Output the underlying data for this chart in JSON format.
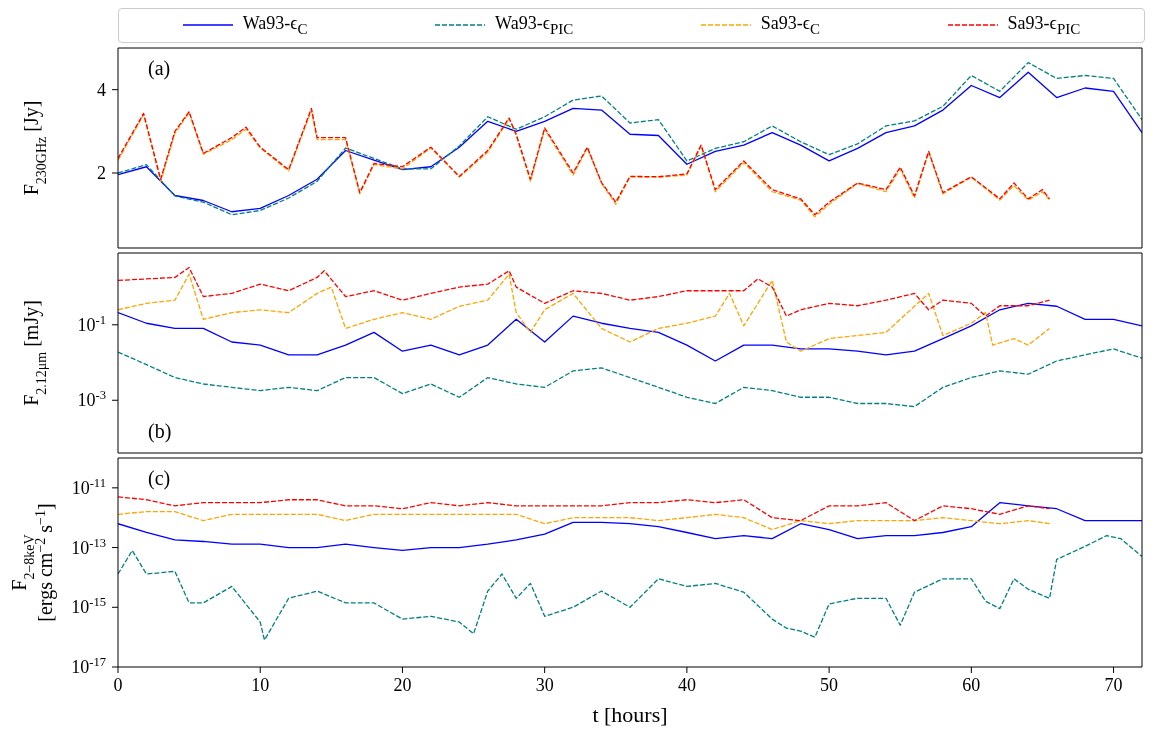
{
  "chart_data": [
    {
      "type": "line",
      "ylabel": "F$_{230GHz}$ [Jy]",
      "annotations": [
        "(a)"
      ],
      "legend": "top",
      "tick_labels": "y",
      "xlim": [
        0,
        72
      ],
      "xticks": [
        0,
        10,
        20,
        30,
        40,
        50,
        60,
        70
      ],
      "ylim": [
        0.2,
        5
      ],
      "yticks": [
        2,
        4
      ],
      "x": [
        0,
        2,
        4,
        6,
        8,
        10,
        12,
        14,
        16,
        18,
        20,
        22,
        24,
        26,
        28,
        30,
        32,
        34,
        36,
        38,
        40,
        42,
        44,
        46,
        48,
        50,
        52,
        54,
        56,
        58,
        60,
        62,
        64,
        66,
        68,
        70,
        72
      ],
      "series": [
        {
          "name": "Wa93-ϵ$_{C}$",
          "color": "#0000ff",
          "line_style": "solid",
          "values": [
            1.96,
            2.15,
            1.46,
            1.34,
            1.07,
            1.15,
            1.46,
            1.85,
            2.54,
            2.31,
            2.08,
            2.15,
            2.62,
            3.24,
            3.0,
            3.24,
            3.55,
            3.51,
            2.93,
            2.9,
            2.21,
            2.52,
            2.67,
            2.97,
            2.67,
            2.29,
            2.59,
            2.97,
            3.13,
            3.51,
            4.1,
            3.81,
            4.42,
            3.81,
            4.04,
            3.96,
            2.97
          ]
        },
        {
          "name": "Wa93-ϵ$_{PIC}$",
          "color": "#008080",
          "line_style": "dashed",
          "values": [
            2.0,
            2.2,
            1.45,
            1.3,
            1.0,
            1.1,
            1.4,
            1.8,
            2.6,
            2.35,
            2.1,
            2.1,
            2.65,
            3.35,
            3.05,
            3.35,
            3.75,
            3.85,
            3.2,
            3.28,
            2.29,
            2.59,
            2.75,
            3.13,
            2.75,
            2.44,
            2.7,
            3.13,
            3.25,
            3.6,
            4.34,
            3.96,
            4.65,
            4.27,
            4.34,
            4.27,
            3.28
          ]
        },
        {
          "name": "Sa93-ϵ$_{C}$",
          "color": "#ffa500",
          "line_style": "dashed",
          "x": [
            0,
            1.8,
            3,
            4,
            5,
            6,
            8,
            9,
            10,
            12,
            13.6,
            14,
            16,
            17,
            18,
            20,
            22,
            24,
            26,
            27.5,
            28,
            29,
            30,
            32,
            33,
            34,
            35,
            36,
            38,
            40,
            41,
            42,
            44,
            46,
            48,
            49,
            50,
            52,
            54,
            55,
            56,
            57,
            58,
            60,
            62,
            63,
            64,
            65,
            65.5
          ],
          "values": [
            2.3,
            3.4,
            1.8,
            2.95,
            3.45,
            2.45,
            2.8,
            3.05,
            2.6,
            2.05,
            3.5,
            2.8,
            2.8,
            1.5,
            2.2,
            2.1,
            2.6,
            1.9,
            2.5,
            3.3,
            2.9,
            1.8,
            3.05,
            1.95,
            2.6,
            1.75,
            1.25,
            1.9,
            1.9,
            1.95,
            2.65,
            1.55,
            2.25,
            1.55,
            1.35,
            0.95,
            1.25,
            1.75,
            1.55,
            2.1,
            1.4,
            2.5,
            1.5,
            1.9,
            1.35,
            1.7,
            1.35,
            1.55,
            1.35
          ]
        },
        {
          "name": "Sa93-ϵ$_{PIC}$",
          "color": "#ff0000",
          "line_style": "dashed",
          "x": [
            0,
            1.8,
            3,
            4,
            5,
            6,
            8,
            9,
            10,
            12,
            13.6,
            14,
            16,
            17,
            18,
            20,
            22,
            24,
            26,
            27.5,
            28,
            29,
            30,
            32,
            33,
            34,
            35,
            36,
            38,
            40,
            41,
            42,
            44,
            46,
            48,
            49,
            50,
            52,
            54,
            55,
            56,
            57,
            58,
            60,
            62,
            63,
            64,
            65,
            65.5
          ],
          "values": [
            2.35,
            3.43,
            1.85,
            3.0,
            3.47,
            2.47,
            2.85,
            3.1,
            2.62,
            2.08,
            3.55,
            2.85,
            2.85,
            1.53,
            2.23,
            2.15,
            2.62,
            1.92,
            2.54,
            3.32,
            2.93,
            1.85,
            3.08,
            2.0,
            2.62,
            1.77,
            1.3,
            1.92,
            1.91,
            1.98,
            2.67,
            1.6,
            2.29,
            1.6,
            1.38,
            1.0,
            1.3,
            1.76,
            1.6,
            2.14,
            1.45,
            2.52,
            1.53,
            1.91,
            1.38,
            1.76,
            1.38,
            1.6,
            1.38
          ]
        }
      ]
    },
    {
      "type": "line",
      "ylabel": "F$_{2.12μm}$ [mJy]",
      "annotations": [
        "(b)"
      ],
      "tick_labels": "y",
      "log": "y",
      "xlim": [
        0,
        72
      ],
      "xticks": [
        0,
        10,
        20,
        30,
        40,
        50,
        60,
        70
      ],
      "ylim": [
        4e-05,
        8
      ],
      "yticks": [
        {
          "value": 0.001,
          "label": "10$^{-3}$"
        },
        {
          "value": 0.1,
          "label": "10$^{-1}$"
        }
      ],
      "x": [
        0,
        2,
        4,
        6,
        8,
        10,
        12,
        14,
        16,
        18,
        20,
        22,
        24,
        26,
        28,
        30,
        32,
        34,
        36,
        38,
        40,
        42,
        44,
        46,
        48,
        50,
        52,
        54,
        56,
        58,
        60,
        62,
        64,
        66,
        68,
        70,
        72
      ],
      "series": [
        {
          "color": "#0000ff",
          "line_style": "solid",
          "values": [
            0.21,
            0.11,
            0.08,
            0.08,
            0.035,
            0.029,
            0.016,
            0.016,
            0.029,
            0.063,
            0.02,
            0.029,
            0.016,
            0.029,
            0.14,
            0.035,
            0.17,
            0.11,
            0.08,
            0.063,
            0.029,
            0.011,
            0.029,
            0.029,
            0.023,
            0.023,
            0.02,
            0.016,
            0.02,
            0.043,
            0.094,
            0.25,
            0.37,
            0.31,
            0.14,
            0.14,
            0.094
          ]
        },
        {
          "color": "#008080",
          "line_style": "dashed",
          "values": [
            0.019,
            0.0088,
            0.004,
            0.0027,
            0.0022,
            0.0018,
            0.0022,
            0.0018,
            0.004,
            0.004,
            0.0015,
            0.0027,
            0.0012,
            0.004,
            0.0027,
            0.0022,
            0.006,
            0.0072,
            0.004,
            0.0022,
            0.0012,
            0.00082,
            0.0022,
            0.0018,
            0.0012,
            0.0012,
            0.00082,
            0.00082,
            0.00068,
            0.0022,
            0.004,
            0.006,
            0.0049,
            0.011,
            0.016,
            0.023,
            0.013
          ]
        },
        {
          "color": "#ffa500",
          "line_style": "dashed",
          "x": [
            0,
            2,
            4,
            5,
            6,
            8,
            10,
            12,
            14,
            15,
            16,
            18,
            20,
            22,
            24,
            26,
            27.5,
            28,
            29,
            30,
            32,
            34,
            36,
            38,
            40,
            42,
            43,
            44,
            46,
            47,
            48,
            50,
            52,
            54,
            56,
            57,
            58,
            60,
            61,
            61.5,
            63,
            64,
            65.5
          ],
          "values": [
            0.25,
            0.37,
            0.45,
            2.2,
            0.14,
            0.21,
            0.25,
            0.21,
            0.68,
            1.0,
            0.08,
            0.14,
            0.21,
            0.14,
            0.31,
            0.45,
            2.2,
            0.21,
            0.063,
            0.25,
            0.68,
            0.08,
            0.035,
            0.08,
            0.11,
            0.17,
            0.68,
            0.094,
            1.5,
            0.035,
            0.02,
            0.043,
            0.052,
            0.063,
            0.31,
            0.68,
            0.052,
            0.11,
            0.21,
            0.029,
            0.043,
            0.029,
            0.08
          ]
        },
        {
          "color": "#ff0000",
          "line_style": "dashed",
          "x": [
            0,
            4,
            5,
            6,
            8,
            10,
            12,
            14,
            14.5,
            16,
            18,
            20,
            22,
            24,
            26,
            27.5,
            28,
            30,
            32,
            34,
            36,
            38,
            40,
            42,
            44,
            45,
            46,
            47,
            48,
            50,
            52,
            54,
            56,
            57,
            58,
            60,
            61,
            62,
            64,
            65.5
          ],
          "values": [
            1.5,
            1.8,
            3.3,
            0.56,
            0.68,
            1.2,
            0.8,
            1.8,
            2.7,
            0.56,
            0.8,
            0.45,
            0.68,
            1.0,
            1.2,
            2.7,
            1.0,
            0.37,
            0.8,
            0.68,
            0.45,
            0.56,
            0.8,
            0.8,
            0.8,
            1.65,
            1.0,
            0.17,
            0.25,
            0.37,
            0.32,
            0.45,
            0.68,
            0.25,
            0.45,
            0.37,
            0.17,
            0.32,
            0.32,
            0.45
          ]
        }
      ]
    },
    {
      "type": "line",
      "xlabel": "t [hours]",
      "ylabel": "F$_{2−8keV}$\n[ergs cm$^{−2}$ s$^{−1}$]",
      "annotations": [
        "(c)"
      ],
      "log": "y",
      "xlim": [
        0,
        72
      ],
      "xticks": [
        0,
        10,
        20,
        30,
        40,
        50,
        60,
        70
      ],
      "ylim": [
        1e-17,
        1e-10
      ],
      "yticks": [
        {
          "value": 1e-17,
          "label": "10$^{-17}$"
        },
        {
          "value": 1e-15,
          "label": "10$^{-15}$"
        },
        {
          "value": 1e-13,
          "label": "10$^{-13}$"
        },
        {
          "value": 1e-11,
          "label": "10$^{-11}$"
        }
      ],
      "x": [
        0,
        2,
        4,
        6,
        8,
        10,
        12,
        14,
        16,
        18,
        20,
        22,
        24,
        26,
        28,
        30,
        32,
        34,
        36,
        38,
        40,
        42,
        44,
        46,
        48,
        50,
        52,
        54,
        56,
        58,
        60,
        62,
        64,
        66,
        68,
        70,
        72
      ],
      "series": [
        {
          "color": "#0000ff",
          "line_style": "solid",
          "values": [
            6.3e-13,
            3.2e-13,
            1.8e-13,
            1.6e-13,
            1.3e-13,
            1.3e-13,
            1e-13,
            1e-13,
            1.3e-13,
            1e-13,
            8e-14,
            1e-13,
            1e-13,
            1.3e-13,
            1.8e-13,
            2.8e-13,
            7e-13,
            7e-13,
            6.3e-13,
            5e-13,
            3.2e-13,
            2e-13,
            2.5e-13,
            2e-13,
            6.3e-13,
            4e-13,
            2e-13,
            2.5e-13,
            2.5e-13,
            3.2e-13,
            5e-13,
            3.2e-12,
            2.5e-12,
            2e-12,
            8e-13,
            8e-13,
            8e-13
          ]
        },
        {
          "color": "#008080",
          "line_style": "dashed",
          "x": [
            0,
            1,
            2,
            4,
            5,
            6,
            8,
            10,
            10.3,
            12,
            14,
            16,
            18,
            20,
            22,
            24,
            25,
            26,
            27,
            28,
            29,
            30,
            32,
            34,
            36,
            38,
            40,
            42,
            44,
            46,
            47,
            48,
            49,
            50,
            52,
            54,
            55,
            56,
            58,
            60,
            61,
            62,
            63,
            64,
            65.5,
            66,
            68,
            69.5,
            70.5,
            72
          ],
          "values": [
            1.3e-14,
            8e-14,
            1.3e-14,
            1.6e-14,
            1.4e-15,
            1.4e-15,
            5e-15,
            3.2e-16,
            8e-17,
            2e-15,
            3.5e-15,
            1.4e-15,
            1.4e-15,
            4e-16,
            5e-16,
            3.2e-16,
            1.3e-16,
            3.5e-15,
            1.3e-14,
            2e-15,
            6.3e-15,
            5e-16,
            1e-15,
            3.5e-15,
            1e-15,
            9e-15,
            5e-15,
            6.3e-15,
            3.2e-15,
            4e-16,
            2e-16,
            1.6e-16,
            1e-16,
            1.3e-15,
            2e-15,
            2e-15,
            2.5e-16,
            3.2e-15,
            9e-15,
            9e-15,
            1.6e-15,
            9e-16,
            9e-15,
            4e-15,
            2e-15,
            4e-14,
            1.1e-13,
            2.5e-13,
            2e-13,
            5e-14
          ]
        },
        {
          "color": "#ffa500",
          "line_style": "dashed",
          "x": [
            0,
            2,
            4,
            6,
            8,
            10,
            12,
            14,
            16,
            18,
            20,
            22,
            24,
            26,
            28,
            30,
            32,
            34,
            36,
            38,
            40,
            42,
            44,
            46,
            48,
            50,
            52,
            54,
            56,
            58,
            60,
            62,
            64,
            65.5
          ],
          "values": [
            1.3e-12,
            1.6e-12,
            1.6e-12,
            8e-13,
            1.3e-12,
            1.3e-12,
            1.3e-12,
            1.3e-12,
            8e-13,
            1.3e-12,
            1.3e-12,
            1.3e-12,
            1.3e-12,
            1.3e-12,
            1.3e-12,
            6.3e-13,
            1e-12,
            1e-12,
            1e-12,
            8e-13,
            1e-12,
            1.3e-12,
            1e-12,
            4e-13,
            8e-13,
            6.3e-13,
            8e-13,
            8e-13,
            8e-13,
            1e-12,
            8e-13,
            6.3e-13,
            8e-13,
            6.3e-13
          ]
        },
        {
          "color": "#ff0000",
          "line_style": "dashed",
          "x": [
            0,
            2,
            4,
            6,
            8,
            10,
            12,
            14,
            16,
            18,
            20,
            22,
            24,
            26,
            28,
            30,
            32,
            34,
            36,
            38,
            40,
            42,
            44,
            46,
            48,
            50,
            52,
            54,
            56,
            58,
            60,
            62,
            64,
            65.5
          ],
          "values": [
            5e-12,
            4e-12,
            2.5e-12,
            3.2e-12,
            3.2e-12,
            3.2e-12,
            4e-12,
            4e-12,
            2.5e-12,
            2.5e-12,
            2e-12,
            3.2e-12,
            2.5e-12,
            3.2e-12,
            2.5e-12,
            2.5e-12,
            2.5e-12,
            2.5e-12,
            3.2e-12,
            3.2e-12,
            4e-12,
            3.2e-12,
            4e-12,
            1e-12,
            8e-13,
            2.5e-12,
            2.5e-12,
            3.2e-12,
            8e-13,
            2.5e-12,
            2e-12,
            1.3e-12,
            2.5e-12,
            2e-12
          ]
        }
      ]
    }
  ]
}
